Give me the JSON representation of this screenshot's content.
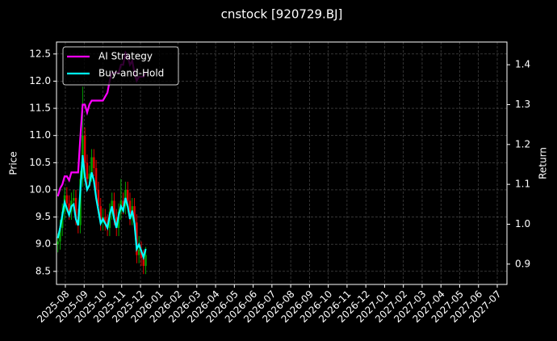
{
  "chart_data": {
    "type": "candlestick",
    "title": "cnstock [920729.BJ]",
    "y_label": "Price",
    "y2_label": "Return",
    "up_color": "#00a000",
    "down_color": "#e00000",
    "grid": true,
    "legend": "upper left",
    "x": [
      2025.55,
      2025.56,
      2025.57,
      2025.58,
      2025.59,
      2025.6,
      2025.61,
      2025.62,
      2025.63,
      2025.64,
      2025.65,
      2025.66,
      2025.67,
      2025.68,
      2025.69,
      2025.7,
      2025.71,
      2025.72,
      2025.73,
      2025.74,
      2025.75,
      2025.76,
      2025.77,
      2025.78,
      2025.79,
      2025.8,
      2025.81,
      2025.82,
      2025.83,
      2025.84,
      2025.85,
      2025.86,
      2025.87,
      2025.88,
      2025.89,
      2025.9,
      2025.91,
      2025.92,
      2025.93,
      2025.94
    ],
    "open": [
      9.0,
      9.05,
      9.3,
      9.6,
      9.9,
      9.75,
      9.6,
      9.8,
      9.85,
      9.5,
      9.35,
      10.2,
      11.0,
      10.5,
      10.2,
      10.3,
      10.6,
      10.4,
      10.0,
      9.7,
      9.4,
      9.5,
      9.4,
      9.3,
      9.6,
      9.8,
      9.5,
      9.3,
      9.6,
      9.8,
      9.7,
      10.0,
      9.8,
      9.5,
      9.7,
      9.4,
      8.8,
      8.9,
      8.75,
      8.6
    ],
    "high": [
      9.2,
      9.45,
      9.75,
      10.05,
      10.05,
      9.9,
      9.95,
      10.0,
      10.0,
      9.65,
      10.35,
      11.9,
      11.15,
      10.65,
      10.45,
      10.75,
      10.75,
      10.55,
      10.15,
      9.85,
      9.65,
      9.65,
      9.55,
      9.75,
      9.95,
      9.95,
      9.65,
      9.75,
      10.2,
      9.95,
      10.15,
      10.15,
      9.95,
      9.85,
      9.85,
      9.55,
      9.15,
      9.05,
      8.9,
      8.95
    ],
    "low": [
      8.85,
      8.9,
      9.15,
      9.45,
      9.6,
      9.45,
      9.45,
      9.65,
      9.35,
      9.2,
      9.2,
      10.05,
      10.35,
      10.05,
      10.05,
      10.15,
      10.25,
      9.85,
      9.55,
      9.25,
      9.25,
      9.25,
      9.15,
      9.15,
      9.45,
      9.35,
      9.15,
      9.15,
      9.45,
      9.55,
      9.55,
      9.65,
      9.35,
      9.35,
      9.25,
      8.65,
      8.65,
      8.6,
      8.45,
      8.45
    ],
    "close": [
      9.05,
      9.3,
      9.6,
      9.9,
      9.75,
      9.6,
      9.8,
      9.85,
      9.5,
      9.35,
      10.2,
      11.0,
      10.5,
      10.2,
      10.3,
      10.6,
      10.4,
      10.0,
      9.7,
      9.4,
      9.5,
      9.4,
      9.3,
      9.6,
      9.8,
      9.5,
      9.3,
      9.6,
      9.8,
      9.7,
      10.0,
      9.8,
      9.5,
      9.7,
      9.4,
      8.8,
      8.9,
      8.75,
      8.6,
      8.8
    ],
    "series": [
      {
        "name": "AI Strategy",
        "color": "#ff00ff",
        "axis": "y2",
        "values": [
          1.07,
          1.09,
          1.1,
          1.12,
          1.12,
          1.11,
          1.13,
          1.13,
          1.13,
          1.13,
          1.22,
          1.3,
          1.3,
          1.28,
          1.3,
          1.31,
          1.31,
          1.31,
          1.31,
          1.31,
          1.31,
          1.32,
          1.33,
          1.36,
          1.38,
          1.38,
          1.38,
          1.38,
          1.4,
          1.4,
          1.43,
          1.42,
          1.4,
          1.41,
          1.38,
          1.36,
          1.37,
          1.37,
          1.37,
          1.38
        ]
      },
      {
        "name": "Buy-and-Hold",
        "color": "#00ffff",
        "axis": "y2",
        "values": [
          0.965,
          0.991,
          1.023,
          1.055,
          1.039,
          1.023,
          1.045,
          1.05,
          1.013,
          0.997,
          1.087,
          1.173,
          1.119,
          1.087,
          1.098,
          1.13,
          1.109,
          1.066,
          1.034,
          1.002,
          1.013,
          1.002,
          0.991,
          1.023,
          1.045,
          1.013,
          0.991,
          1.023,
          1.045,
          1.034,
          1.066,
          1.045,
          1.013,
          1.034,
          1.002,
          0.938,
          0.949,
          0.933,
          0.917,
          0.938
        ]
      }
    ],
    "xlim": [
      2025.544,
      2027.543
    ],
    "xticks": [
      {
        "value": 2025.5833,
        "label": "2025-08"
      },
      {
        "value": 2025.6667,
        "label": "2025-09"
      },
      {
        "value": 2025.75,
        "label": "2025-10"
      },
      {
        "value": 2025.8333,
        "label": "2025-11"
      },
      {
        "value": 2025.9167,
        "label": "2025-12"
      },
      {
        "value": 2026,
        "label": "2026-01"
      },
      {
        "value": 2026.0833,
        "label": "2026-02"
      },
      {
        "value": 2026.1667,
        "label": "2026-03"
      },
      {
        "value": 2026.25,
        "label": "2026-04"
      },
      {
        "value": 2026.3333,
        "label": "2026-05"
      },
      {
        "value": 2026.4167,
        "label": "2026-06"
      },
      {
        "value": 2026.5,
        "label": "2026-07"
      },
      {
        "value": 2026.5833,
        "label": "2026-08"
      },
      {
        "value": 2026.6667,
        "label": "2026-09"
      },
      {
        "value": 2026.75,
        "label": "2026-10"
      },
      {
        "value": 2026.8333,
        "label": "2026-11"
      },
      {
        "value": 2026.9167,
        "label": "2026-12"
      },
      {
        "value": 2027,
        "label": "2027-01"
      },
      {
        "value": 2027.0833,
        "label": "2027-02"
      },
      {
        "value": 2027.1667,
        "label": "2027-03"
      },
      {
        "value": 2027.25,
        "label": "2027-04"
      },
      {
        "value": 2027.3333,
        "label": "2027-05"
      },
      {
        "value": 2027.4167,
        "label": "2027-06"
      },
      {
        "value": 2027.5,
        "label": "2027-07"
      }
    ],
    "ylim": [
      8.26,
      12.72
    ],
    "yticks": [
      8.5,
      {
        "value": 9,
        "label": "9.0"
      },
      9.5,
      {
        "value": 10,
        "label": "10.0"
      },
      10.5,
      {
        "value": 11,
        "label": "11.0"
      },
      11.5,
      {
        "value": 12,
        "label": "12.0"
      },
      12.5
    ],
    "y2lim": [
      0.849,
      1.457
    ],
    "y2ticks": [
      0.9,
      {
        "value": 1,
        "label": "1.0"
      },
      1.1,
      1.2,
      1.3,
      1.4
    ]
  }
}
